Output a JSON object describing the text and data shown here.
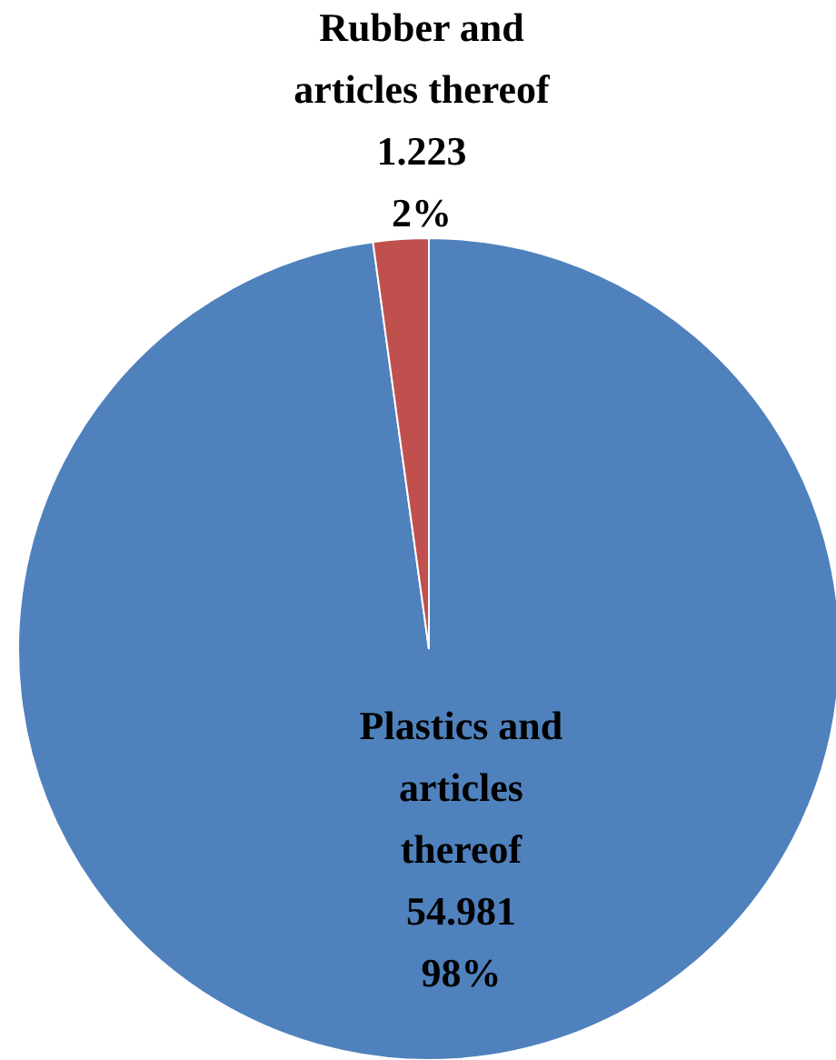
{
  "chart_data": {
    "type": "pie",
    "categories": [
      "Plastics and articles thereof",
      "Rubber and articles thereof"
    ],
    "values": [
      54.981,
      1.223
    ],
    "colors": [
      "#4f81bd",
      "#c0504d"
    ],
    "value_labels": [
      "54.981\n98%",
      "1.223\n2%"
    ],
    "legend": false
  }
}
